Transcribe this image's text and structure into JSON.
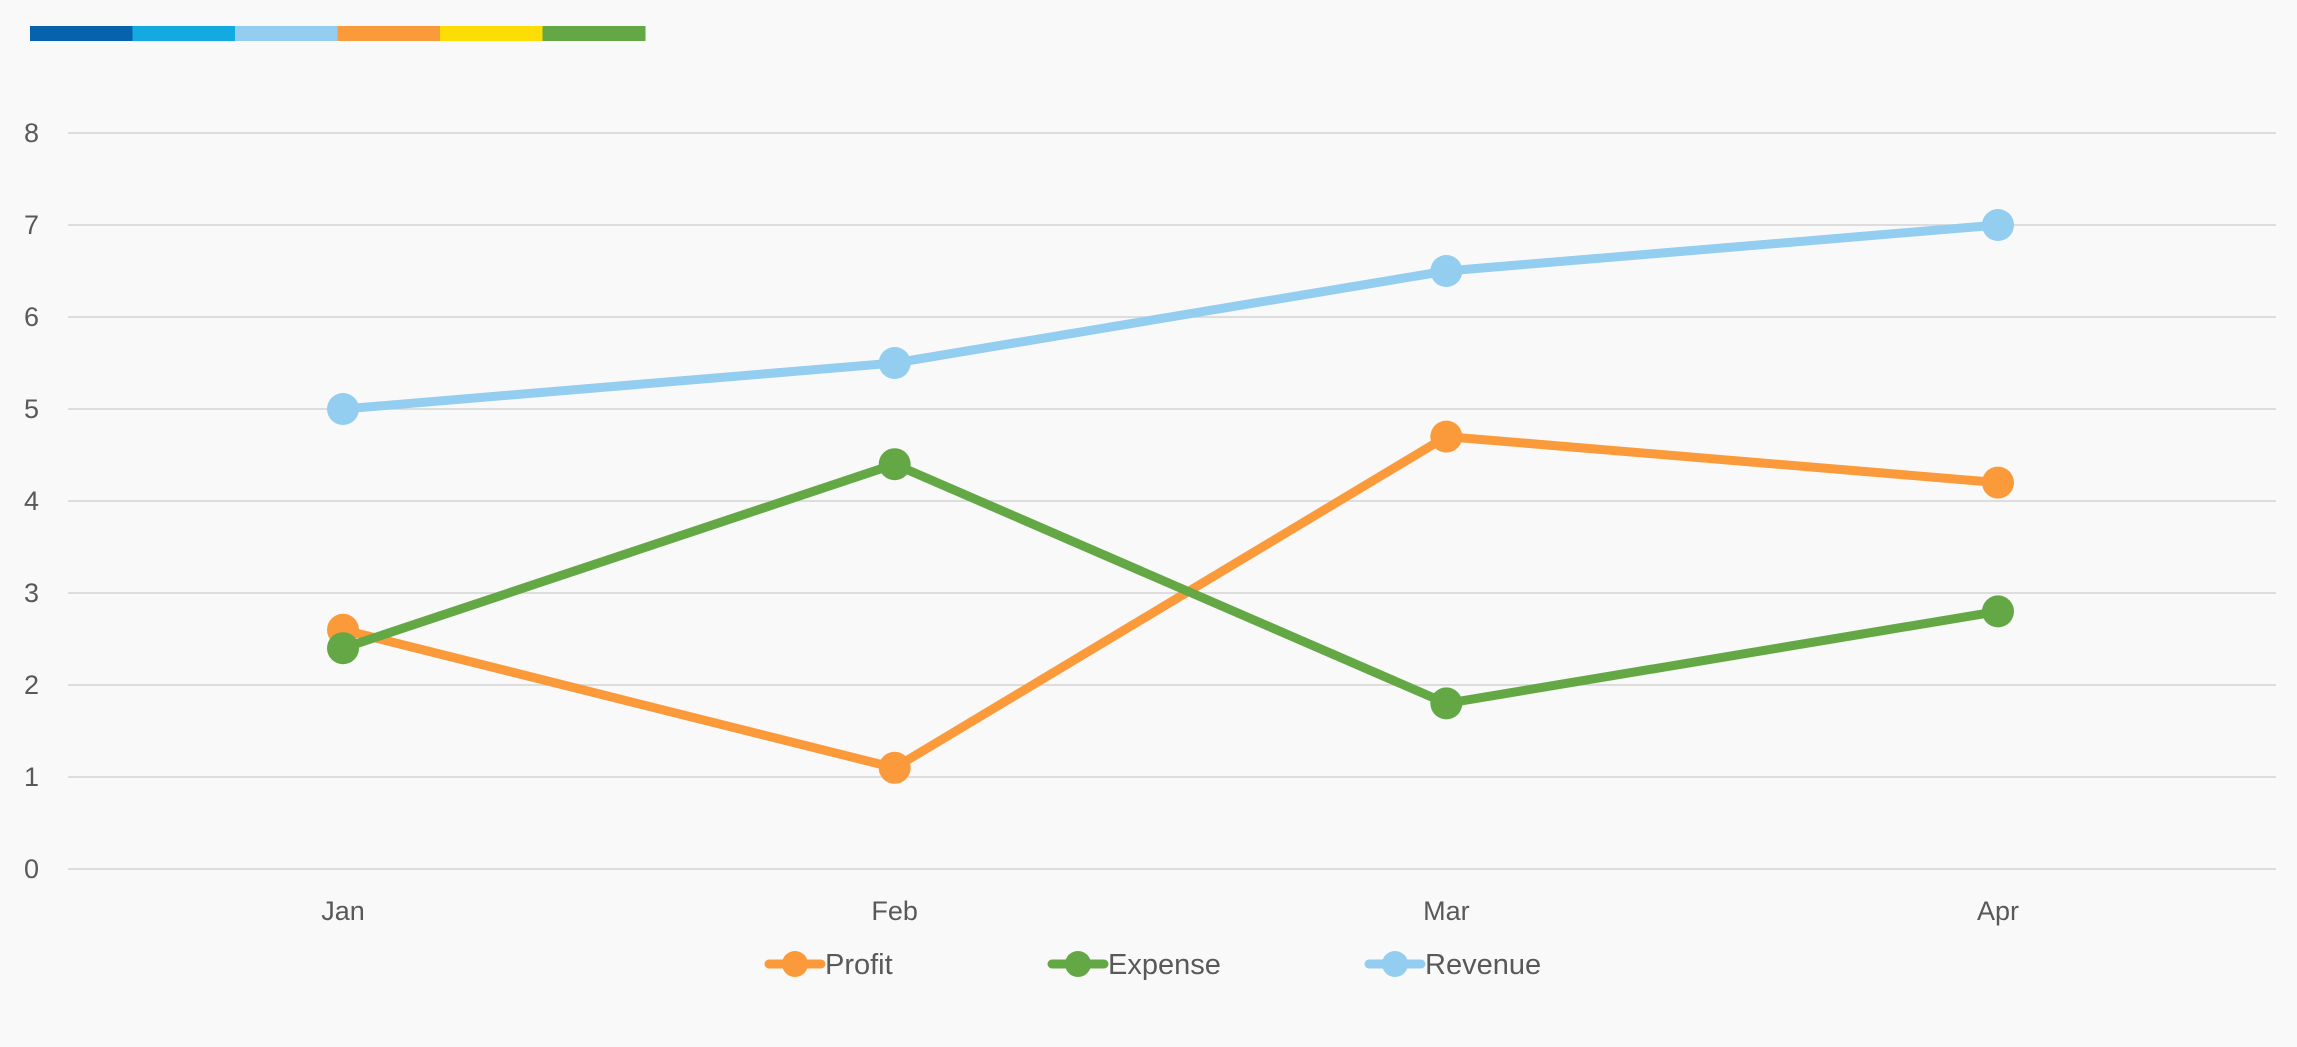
{
  "palette_strip": {
    "colors": [
      "#0563ab",
      "#13a9e1",
      "#93cdf0",
      "#fa9a3a",
      "#fedd07",
      "#63a845"
    ]
  },
  "chart_data": {
    "type": "line",
    "title": "",
    "xlabel": "",
    "ylabel": "",
    "categories": [
      "Jan",
      "Feb",
      "Mar",
      "Apr"
    ],
    "ylim": [
      0,
      8
    ],
    "y_ticks": [
      0,
      1,
      2,
      3,
      4,
      5,
      6,
      7,
      8
    ],
    "grid": true,
    "legend_position": "bottom",
    "series": [
      {
        "name": "Profit",
        "color": "#fa9a3a",
        "values": [
          2.6,
          1.1,
          4.7,
          4.2
        ]
      },
      {
        "name": "Expense",
        "color": "#63a845",
        "values": [
          2.4,
          4.4,
          1.8,
          2.8
        ]
      },
      {
        "name": "Revenue",
        "color": "#93cdf0",
        "values": [
          5.0,
          5.5,
          6.5,
          7.0
        ]
      }
    ]
  }
}
